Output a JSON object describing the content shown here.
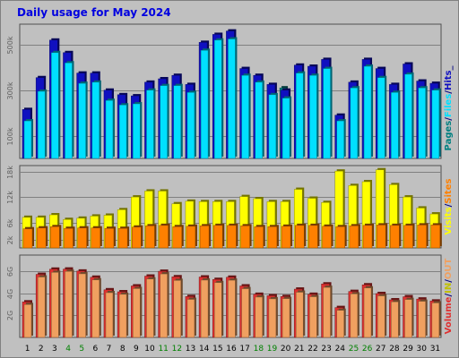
{
  "page": {
    "title": "Daily usage for May 2024"
  },
  "chart_data": {
    "type": "bar",
    "categories": [
      "1",
      "2",
      "3",
      "4",
      "5",
      "6",
      "7",
      "8",
      "9",
      "10",
      "11",
      "12",
      "13",
      "14",
      "15",
      "16",
      "17",
      "18",
      "19",
      "20",
      "21",
      "22",
      "23",
      "24",
      "25",
      "26",
      "27",
      "28",
      "29",
      "30",
      "31"
    ],
    "weekend_days": [
      "4",
      "5",
      "11",
      "12",
      "18",
      "19",
      "25",
      "26"
    ],
    "colors": {
      "hits": "#1010c0",
      "files": "#00e0ff",
      "pages": "#008080",
      "visits": "#ffff00",
      "sites": "#ff8000",
      "kbytes_in": "#e03030",
      "kbytes_out": "#f0a060",
      "title": "#0000e0",
      "background": "#c0c0c0"
    },
    "panels": [
      {
        "id": "hits-files-pages",
        "ylim": [
          0,
          590000
        ],
        "ytick_values": [
          100000,
          300000,
          500000
        ],
        "ytick_labels": [
          "100k",
          "300k",
          "500k"
        ],
        "legend": [
          {
            "name": "Hits",
            "color": "#1010c0"
          },
          {
            "name": "Files",
            "color": "#00e0ff"
          },
          {
            "name": "Pages",
            "color": "#008080"
          }
        ],
        "series": [
          {
            "name": "Hits",
            "color": "#1010c0",
            "values": [
              215000,
              355000,
              520000,
              465000,
              375000,
              375000,
              300000,
              280000,
              275000,
              335000,
              350000,
              365000,
              325000,
              510000,
              545000,
              560000,
              395000,
              365000,
              325000,
              300000,
              410000,
              405000,
              435000,
              190000,
              335000,
              435000,
              395000,
              325000,
              415000,
              340000,
              330000
            ]
          },
          {
            "name": "Files",
            "color": "#00e0ff",
            "values": [
              165000,
              295000,
              465000,
              420000,
              330000,
              335000,
              255000,
              235000,
              240000,
              300000,
              320000,
              320000,
              290000,
              475000,
              520000,
              525000,
              365000,
              335000,
              280000,
              265000,
              375000,
              365000,
              395000,
              165000,
              310000,
              405000,
              355000,
              290000,
              370000,
              310000,
              300000
            ]
          },
          {
            "name": "Pages",
            "color": "#008080",
            "values": [
              0,
              0,
              0,
              0,
              0,
              0,
              0,
              0,
              0,
              0,
              0,
              0,
              0,
              0,
              0,
              0,
              0,
              0,
              0,
              310000,
              0,
              0,
              0,
              0,
              0,
              0,
              0,
              0,
              0,
              0,
              0
            ]
          }
        ]
      },
      {
        "id": "visits-sites",
        "ylim": [
          0,
          19400
        ],
        "ytick_values": [
          2000,
          6000,
          12000,
          18000
        ],
        "ytick_labels": [
          "2k",
          "6k",
          "12k",
          "18k"
        ],
        "legend": [
          {
            "name": "Sites",
            "color": "#ff8000"
          },
          {
            "name": "Visits",
            "color": "#ffff00"
          }
        ],
        "series": [
          {
            "name": "Visits",
            "color": "#ffff00",
            "values": [
              7200,
              7200,
              7800,
              6700,
              7000,
              7500,
              7700,
              9000,
              12000,
              13400,
              13400,
              10400,
              11000,
              10900,
              10900,
              10900,
              12100,
              11600,
              10900,
              10900,
              13800,
              11700,
              10700,
              18100,
              14700,
              15600,
              18400,
              14900,
              12000,
              9400,
              8000
            ]
          },
          {
            "name": "Sites",
            "color": "#ff8000",
            "values": [
              4500,
              4700,
              5000,
              4600,
              4700,
              4700,
              4600,
              4600,
              4900,
              5200,
              5300,
              5000,
              5100,
              5200,
              5300,
              5300,
              5200,
              5000,
              5000,
              5100,
              5300,
              5300,
              5100,
              5000,
              5200,
              5300,
              5400,
              5300,
              5300,
              5400,
              5400
            ]
          }
        ]
      },
      {
        "id": "volume-in-out",
        "ylim": [
          0,
          7470000
        ],
        "ytick_values": [
          2000000,
          4000000,
          6000000
        ],
        "ytick_labels": [
          "2G",
          "4G",
          "6G"
        ],
        "legend": [
          {
            "name": "Volume",
            "color": "#e03030"
          },
          {
            "name": "IN",
            "color": "#c0c000"
          },
          {
            "name": "OUT",
            "color": "#f0a060"
          }
        ],
        "series": [
          {
            "name": "Volume",
            "color": "#e03030",
            "values": [
              3220000,
              5720000,
              6190000,
              6200000,
              6020000,
              5460000,
              4320000,
              4140000,
              4670000,
              5560000,
              6000000,
              5500000,
              3710000,
              5480000,
              5260000,
              5460000,
              4670000,
              3910000,
              3780000,
              3710000,
              4380000,
              3910000,
              4850000,
              2710000,
              4170000,
              4770000,
              3980000,
              3410000,
              3690000,
              3480000,
              3300000
            ]
          },
          {
            "name": "OUT",
            "color": "#f0a060",
            "values": [
              2980000,
              5480000,
              5900000,
              5990000,
              5770000,
              5220000,
              4060000,
              3910000,
              4430000,
              5300000,
              5760000,
              5170000,
              3450000,
              5200000,
              4970000,
              5190000,
              4420000,
              3660000,
              3500000,
              3520000,
              4100000,
              3690000,
              4540000,
              2460000,
              3950000,
              4490000,
              3770000,
              3230000,
              3440000,
              3280000,
              3130000
            ]
          }
        ]
      }
    ],
    "legends": {
      "top": [
        {
          "text": "Pages",
          "color": "#008080"
        },
        {
          "text": "/",
          "color": "#000080"
        },
        {
          "text": "Files",
          "color": "#00e0ff"
        },
        {
          "text": "/",
          "color": "#000080"
        },
        {
          "text": "Hits",
          "color": "#1010c0"
        },
        {
          "text": "_",
          "color": "#000080"
        }
      ],
      "middle": [
        {
          "text": "Visits",
          "color": "#ffff00"
        },
        {
          "text": "/",
          "color": "#000080"
        },
        {
          "text": "Sites",
          "color": "#ff8000"
        }
      ],
      "bottom": [
        {
          "text": "Volume",
          "color": "#e03030"
        },
        {
          "text": "/",
          "color": "#000080"
        },
        {
          "text": "IN",
          "color": "#c0c000"
        },
        {
          "text": "/",
          "color": "#000080"
        },
        {
          "text": "OUT",
          "color": "#f0a060"
        }
      ]
    }
  }
}
